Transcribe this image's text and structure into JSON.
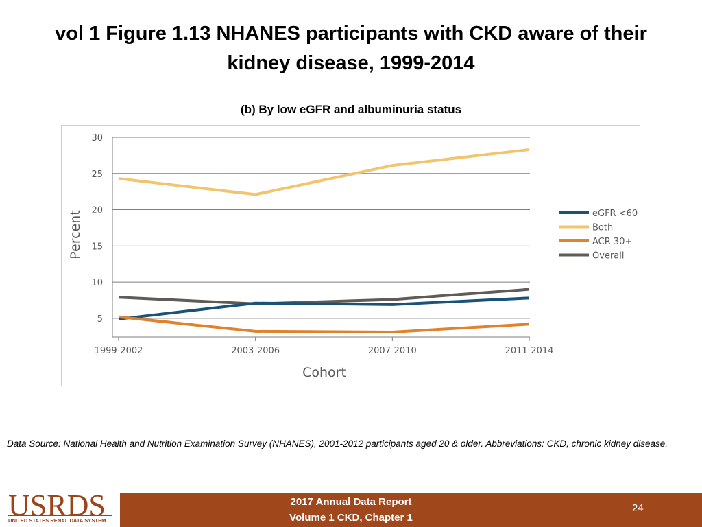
{
  "slide": {
    "title": "vol 1 Figure 1.13 NHANES participants with CKD aware of their kidney disease, 1999-2014"
  },
  "chart_data": {
    "type": "line",
    "subtitle": "(b) By low eGFR and albuminuria status",
    "xlabel": "Cohort",
    "ylabel": "Percent",
    "categories": [
      "1999-2002",
      "2003-2006",
      "2007-2010",
      "2011-2014"
    ],
    "ylim": [
      3,
      30
    ],
    "yticks": [
      5,
      10,
      15,
      20,
      25,
      30
    ],
    "grid": true,
    "legend_position": "right",
    "series": [
      {
        "name": "eGFR <60",
        "color": "#1b5378",
        "values": [
          4.9,
          7.1,
          6.9,
          7.8
        ]
      },
      {
        "name": "Both",
        "color": "#f2c46e",
        "values": [
          24.3,
          22.1,
          26.1,
          28.3
        ]
      },
      {
        "name": "ACR 30+",
        "color": "#e0822c",
        "values": [
          5.2,
          3.2,
          3.1,
          4.2
        ]
      },
      {
        "name": "Overall",
        "color": "#615b57",
        "values": [
          7.9,
          7.0,
          7.6,
          9.0
        ]
      }
    ]
  },
  "footnote": {
    "text": "Data Source: National Health and Nutrition Examination Survey (NHANES), 2001-2012 participants aged 20 & older. Abbreviations: CKD, chronic kidney disease."
  },
  "footer": {
    "logo_text": "USRDS",
    "logo_subtext": "UNITED STATES RENAL DATA SYSTEM",
    "report_line1": "2017 Annual Data Report",
    "report_line2": "Volume 1 CKD, Chapter 1",
    "page_number": "24",
    "bar_color": "#a0471c"
  }
}
